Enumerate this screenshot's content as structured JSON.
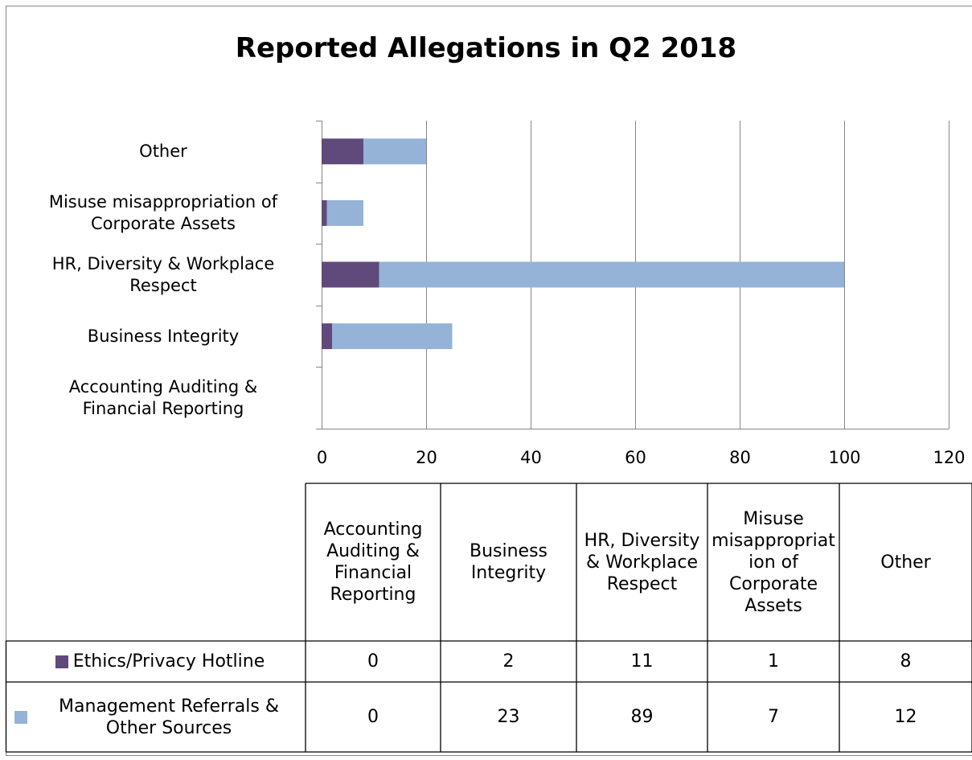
{
  "chart_data": {
    "type": "bar",
    "orientation": "horizontal",
    "stacked": true,
    "title": "Reported Allegations in Q2 2018",
    "categories": [
      "Accounting Auditing & Financial Reporting",
      "Business Integrity",
      "HR, Diversity & Workplace Respect",
      "Misuse misappropriation of Corporate Assets",
      "Other"
    ],
    "series": [
      {
        "name": "Ethics/Privacy Hotline",
        "color": "#604a7b",
        "values": [
          0,
          2,
          11,
          1,
          8
        ]
      },
      {
        "name": "Management Referrals & Other Sources",
        "color": "#95b3d7",
        "values": [
          0,
          23,
          89,
          7,
          12
        ]
      }
    ],
    "xlim": [
      0,
      120
    ],
    "xticks": [
      0,
      20,
      40,
      60,
      80,
      100,
      120
    ],
    "grid": true,
    "data_table": true
  }
}
